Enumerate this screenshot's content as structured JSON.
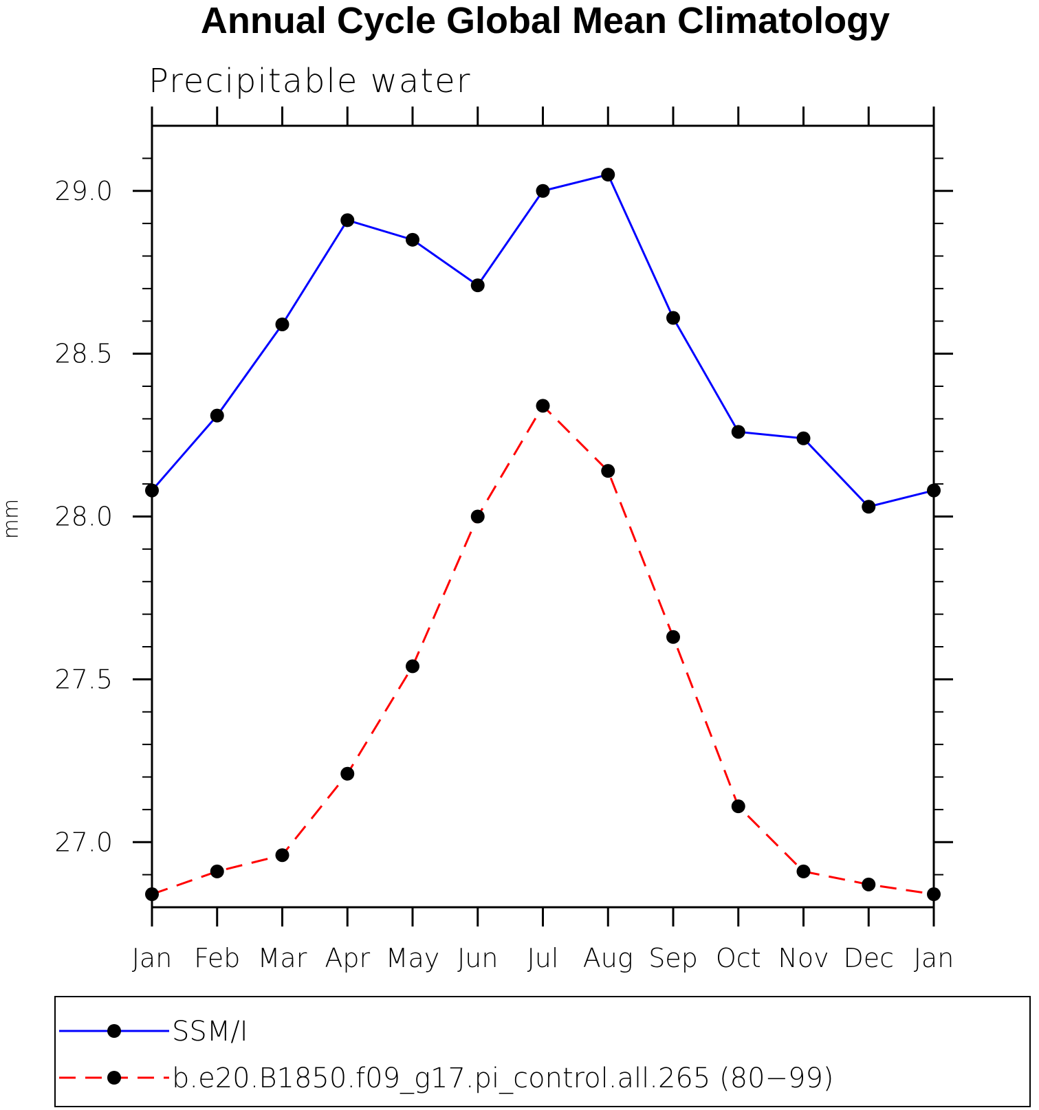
{
  "chart_data": {
    "type": "line",
    "title": "Annual Cycle Global Mean Climatology",
    "subtitle": "Precipitable water",
    "ylabel": "mm",
    "xlabel": "",
    "categories": [
      "Jan",
      "Feb",
      "Mar",
      "Apr",
      "May",
      "Jun",
      "Jul",
      "Aug",
      "Sep",
      "Oct",
      "Nov",
      "Dec",
      "Jan"
    ],
    "ylim": [
      26.8,
      29.2
    ],
    "yticks_major": [
      27.0,
      27.5,
      28.0,
      28.5,
      29.0
    ],
    "ytick_labels": [
      "27.0",
      "27.5",
      "28.0",
      "28.5",
      "29.0"
    ],
    "yticks_minor_step": 0.1,
    "grid": false,
    "legend_position": "bottom",
    "series": [
      {
        "name": "SSM/I",
        "color": "#0000ff",
        "dash": "solid",
        "values": [
          28.08,
          28.31,
          28.59,
          28.91,
          28.85,
          28.71,
          29.0,
          29.05,
          28.61,
          28.26,
          28.24,
          28.03,
          28.08
        ]
      },
      {
        "name": "b.e20.B1850.f09_g17.pi_control.all.265 (80−99)",
        "color": "#ff0000",
        "dash": "dashed",
        "values": [
          26.84,
          26.91,
          26.96,
          27.21,
          27.54,
          28.0,
          28.34,
          28.14,
          27.63,
          27.11,
          26.91,
          26.87,
          26.84
        ]
      }
    ]
  }
}
